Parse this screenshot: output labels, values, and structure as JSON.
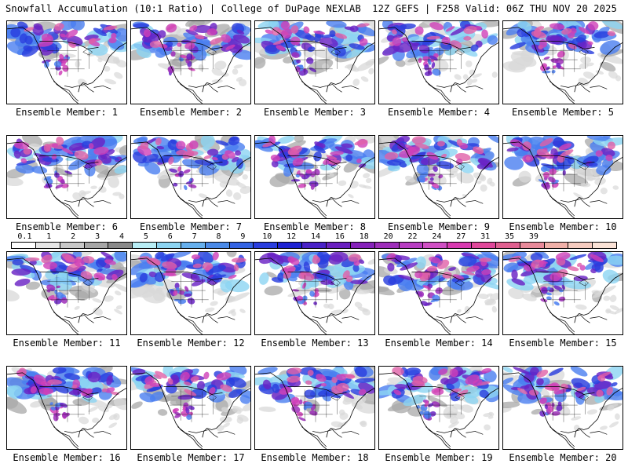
{
  "header": {
    "title_left": "Snowfall Accumulation (10:1 Ratio) | College of DuPage NEXLAB",
    "title_right": "12Z GEFS | F258 Valid: 06Z THU NOV 20 2025"
  },
  "members": [
    {
      "label": "Ensemble Member: 1"
    },
    {
      "label": "Ensemble Member: 2"
    },
    {
      "label": "Ensemble Member: 3"
    },
    {
      "label": "Ensemble Member: 4"
    },
    {
      "label": "Ensemble Member: 5"
    },
    {
      "label": "Ensemble Member: 6"
    },
    {
      "label": "Ensemble Member: 7"
    },
    {
      "label": "Ensemble Member: 8"
    },
    {
      "label": "Ensemble Member: 9"
    },
    {
      "label": "Ensemble Member: 10"
    },
    {
      "label": "Ensemble Member: 11"
    },
    {
      "label": "Ensemble Member: 12"
    },
    {
      "label": "Ensemble Member: 13"
    },
    {
      "label": "Ensemble Member: 14"
    },
    {
      "label": "Ensemble Member: 15"
    },
    {
      "label": "Ensemble Member: 16"
    },
    {
      "label": "Ensemble Member: 17"
    },
    {
      "label": "Ensemble Member: 18"
    },
    {
      "label": "Ensemble Member: 19"
    },
    {
      "label": "Ensemble Member: 20"
    }
  ],
  "colorbar": {
    "ticks": [
      "0.1",
      "1",
      "2",
      "3",
      "4",
      "5",
      "6",
      "7",
      "8",
      "9",
      "10",
      "12",
      "14",
      "16",
      "18",
      "20",
      "22",
      "24",
      "27",
      "31",
      "35",
      "39"
    ],
    "colors": [
      "#ffffff",
      "#e6e6e6",
      "#c8c8c8",
      "#a6a6a6",
      "#8a8a8a",
      "#b8eef6",
      "#8cd4f2",
      "#66b0ee",
      "#4a8ae8",
      "#3464e4",
      "#2a3ede",
      "#1e22d2",
      "#4a22c8",
      "#6a20c0",
      "#8622ba",
      "#9e2eba",
      "#b83ec2",
      "#d050c4",
      "#d83ab0",
      "#e0489a",
      "#e06090",
      "#e88a9a",
      "#f0b0a8",
      "#f6ccc0",
      "#fae2d6"
    ]
  },
  "map_colors": {
    "gray_light": "#d8d8d8",
    "gray_mid": "#a8a8a8",
    "blue": "#4a7ef0",
    "blue_light": "#8cd4f2",
    "blue_deep": "#2a3ede",
    "purple": "#6a22c4",
    "purple_light": "#9e2eba",
    "magenta": "#d040b8",
    "pink": "#e060a8",
    "outline": "#000000"
  }
}
